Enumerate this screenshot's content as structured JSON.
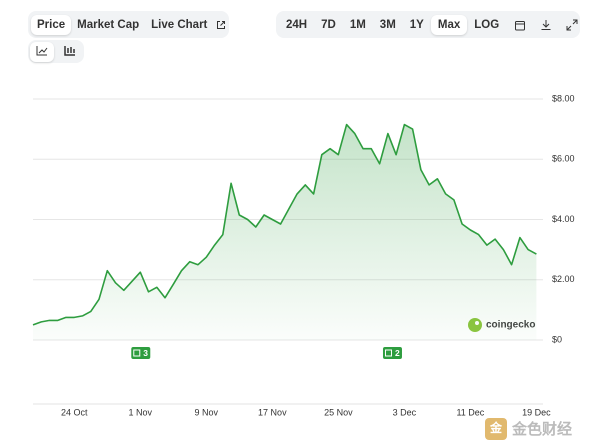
{
  "tabs": [
    {
      "label": "Price",
      "active": true
    },
    {
      "label": "Market Cap",
      "active": false
    },
    {
      "label": "Live Chart",
      "active": false
    }
  ],
  "ranges": [
    {
      "label": "24H",
      "active": false
    },
    {
      "label": "7D",
      "active": false
    },
    {
      "label": "1M",
      "active": false
    },
    {
      "label": "3M",
      "active": false
    },
    {
      "label": "1Y",
      "active": false
    },
    {
      "label": "Max",
      "active": true
    },
    {
      "label": "LOG",
      "active": false
    }
  ],
  "chart_data": {
    "type": "line",
    "color": "#2e9d3f",
    "x": [
      0,
      1,
      2,
      3,
      4,
      5,
      6,
      7,
      8,
      9,
      10,
      11,
      12,
      13,
      14,
      15,
      16,
      17,
      18,
      19,
      20,
      21,
      22,
      23,
      24,
      25,
      26,
      27,
      28,
      29,
      30,
      31,
      32,
      33,
      34,
      35,
      36,
      37,
      38,
      39,
      40,
      41,
      42,
      43,
      44,
      45,
      46,
      47,
      48,
      49,
      50,
      51,
      52,
      53,
      54,
      55,
      56,
      57,
      58,
      59,
      60,
      61
    ],
    "values": [
      0.5,
      0.6,
      0.65,
      0.65,
      0.75,
      0.75,
      0.8,
      0.95,
      1.35,
      2.3,
      1.9,
      1.65,
      1.95,
      2.25,
      1.6,
      1.75,
      1.4,
      1.85,
      2.3,
      2.6,
      2.5,
      2.75,
      3.15,
      3.5,
      5.2,
      4.15,
      4.0,
      3.75,
      4.15,
      4.0,
      3.85,
      4.35,
      4.85,
      5.15,
      4.85,
      6.15,
      6.35,
      6.15,
      7.15,
      6.85,
      6.35,
      6.35,
      5.85,
      6.85,
      6.15,
      7.15,
      7.0,
      5.65,
      5.15,
      5.35,
      4.85,
      4.65,
      3.85,
      3.65,
      3.5,
      3.15,
      3.35,
      3.0,
      2.5,
      3.4,
      3.0,
      2.85
    ],
    "xlim": [
      0,
      61.8
    ],
    "xticks": [
      {
        "value": 5,
        "label": "24 Oct"
      },
      {
        "value": 13,
        "label": "1 Nov"
      },
      {
        "value": 21,
        "label": "9 Nov"
      },
      {
        "value": 29,
        "label": "17 Nov"
      },
      {
        "value": 37,
        "label": "25 Nov"
      },
      {
        "value": 45,
        "label": "3 Dec"
      },
      {
        "value": 53,
        "label": "11 Dec"
      },
      {
        "value": 61,
        "label": "19 Dec"
      }
    ],
    "ylim": [
      0,
      8
    ],
    "yticks": [
      {
        "value": 0,
        "label": "$0"
      },
      {
        "value": 2,
        "label": "$2.00"
      },
      {
        "value": 4,
        "label": "$4.00"
      },
      {
        "value": 6,
        "label": "$6.00"
      },
      {
        "value": 8,
        "label": "$8.00"
      }
    ],
    "grid": true,
    "annotations": [
      {
        "x": 13,
        "label": "3"
      },
      {
        "x": 43.5,
        "label": "2"
      }
    ],
    "watermark": "coingecko"
  },
  "footer_watermark": "金色财经"
}
